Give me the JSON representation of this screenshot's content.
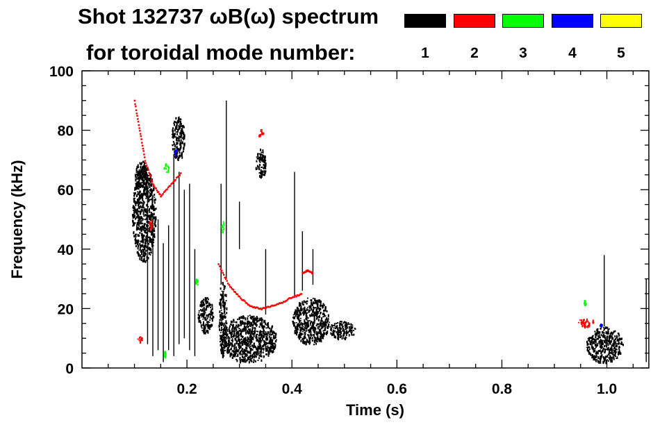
{
  "header": {
    "title_line1": "Shot 132737 ωB(ω) spectrum",
    "title_line2": "for toroidal mode number:"
  },
  "legend": [
    {
      "mode": "1",
      "color": "#000000"
    },
    {
      "mode": "2",
      "color": "#ff0000"
    },
    {
      "mode": "3",
      "color": "#00ff00"
    },
    {
      "mode": "4",
      "color": "#0000ff"
    },
    {
      "mode": "5",
      "color": "#ffff00"
    }
  ],
  "chart_data": {
    "type": "heatmap",
    "title": "Shot 132737 ωB(ω) spectrum",
    "xlabel": "Time (s)",
    "ylabel": "Frequency (kHz)",
    "xlim": [
      0.0,
      1.08
    ],
    "ylim": [
      0,
      100
    ],
    "xticks": [
      0.2,
      0.4,
      0.6,
      0.8,
      1.0
    ],
    "xtick_labels": [
      "0.2",
      "0.4",
      "0.6",
      "0.8",
      "1.0"
    ],
    "yticks": [
      0,
      20,
      40,
      60,
      80,
      100
    ],
    "ytick_labels": [
      "0",
      "20",
      "40",
      "60",
      "80",
      "100"
    ],
    "legend_placement": "top-right",
    "grid": false,
    "series": [
      {
        "mode": "1",
        "color": "#000000",
        "bursts": [
          {
            "t": [
              0.095,
              0.14
            ],
            "f": [
              36,
              68
            ]
          },
          {
            "t": [
              0.1,
              0.125
            ],
            "f": [
              58,
              70
            ]
          },
          {
            "t": [
              0.17,
              0.195
            ],
            "f": [
              70,
              85
            ]
          },
          {
            "t": [
              0.265,
              0.37
            ],
            "f": [
              2,
              18
            ]
          },
          {
            "t": [
              0.26,
              0.275
            ],
            "f": [
              4,
              30
            ]
          },
          {
            "t": [
              0.33,
              0.35
            ],
            "f": [
              64,
              74
            ]
          },
          {
            "t": [
              0.4,
              0.47
            ],
            "f": [
              8,
              24
            ]
          },
          {
            "t": [
              0.47,
              0.52
            ],
            "f": [
              10,
              16
            ]
          },
          {
            "t": [
              0.22,
              0.25
            ],
            "f": [
              12,
              24
            ]
          },
          {
            "t": [
              0.96,
              1.03
            ],
            "f": [
              2,
              14
            ]
          }
        ],
        "streaks": [
          {
            "t": 0.125,
            "f": [
              8,
              58
            ]
          },
          {
            "t": 0.135,
            "f": [
              4,
              52
            ]
          },
          {
            "t": 0.145,
            "f": [
              6,
              50
            ]
          },
          {
            "t": 0.155,
            "f": [
              2,
              42
            ]
          },
          {
            "t": 0.165,
            "f": [
              6,
              48
            ]
          },
          {
            "t": 0.175,
            "f": [
              4,
              72
            ]
          },
          {
            "t": 0.185,
            "f": [
              8,
              66
            ]
          },
          {
            "t": 0.195,
            "f": [
              10,
              60
            ]
          },
          {
            "t": 0.205,
            "f": [
              6,
              62
            ]
          },
          {
            "t": 0.215,
            "f": [
              4,
              40
            ]
          },
          {
            "t": 0.265,
            "f": [
              28,
              62
            ]
          },
          {
            "t": 0.275,
            "f": [
              30,
              90
            ]
          },
          {
            "t": 0.3,
            "f": [
              40,
              56
            ]
          },
          {
            "t": 0.35,
            "f": [
              18,
              40
            ]
          },
          {
            "t": 0.405,
            "f": [
              24,
              66
            ]
          },
          {
            "t": 0.42,
            "f": [
              26,
              46
            ]
          },
          {
            "t": 0.44,
            "f": [
              28,
              40
            ]
          },
          {
            "t": 0.995,
            "f": [
              14,
              38
            ]
          },
          {
            "t": 1.075,
            "f": [
              2,
              30
            ]
          }
        ]
      },
      {
        "mode": "2",
        "color": "#ff0000",
        "bursts": [
          {
            "t": [
              0.335,
              0.345
            ],
            "f": [
              78,
              81
            ]
          },
          {
            "t": [
              0.945,
              0.975
            ],
            "f": [
              14,
              17
            ]
          },
          {
            "t": [
              0.125,
              0.135
            ],
            "f": [
              47,
              50
            ]
          },
          {
            "t": [
              0.105,
              0.115
            ],
            "f": [
              9,
              11
            ]
          }
        ],
        "traces": [
          {
            "t": [
              0.1,
              0.11,
              0.12,
              0.135,
              0.15,
              0.17,
              0.19
            ],
            "f": [
              90,
              80,
              70,
              62,
              58,
              62,
              66
            ]
          },
          {
            "t": [
              0.26,
              0.28,
              0.3,
              0.32,
              0.34,
              0.36,
              0.38,
              0.4,
              0.42
            ],
            "f": [
              35,
              28,
              24,
              21,
              20,
              21,
              22,
              24,
              25
            ]
          },
          {
            "t": [
              0.42,
              0.43,
              0.44
            ],
            "f": [
              32,
              33,
              32
            ]
          }
        ]
      },
      {
        "mode": "3",
        "color": "#00ff00",
        "bursts": [
          {
            "t": [
              0.155,
              0.165
            ],
            "f": [
              66,
              69
            ]
          },
          {
            "t": [
              0.265,
              0.27
            ],
            "f": [
              46,
              50
            ]
          },
          {
            "t": [
              0.955,
              0.96
            ],
            "f": [
              21,
              23
            ]
          },
          {
            "t": [
              0.215,
              0.22
            ],
            "f": [
              27,
              31
            ]
          },
          {
            "t": [
              0.155,
              0.16
            ],
            "f": [
              4,
              6
            ]
          }
        ]
      },
      {
        "mode": "4",
        "color": "#0000ff",
        "bursts": [
          {
            "t": [
              0.175,
              0.18
            ],
            "f": [
              72,
              74
            ]
          },
          {
            "t": [
              0.985,
              0.99
            ],
            "f": [
              14,
              15
            ]
          }
        ]
      }
    ]
  }
}
